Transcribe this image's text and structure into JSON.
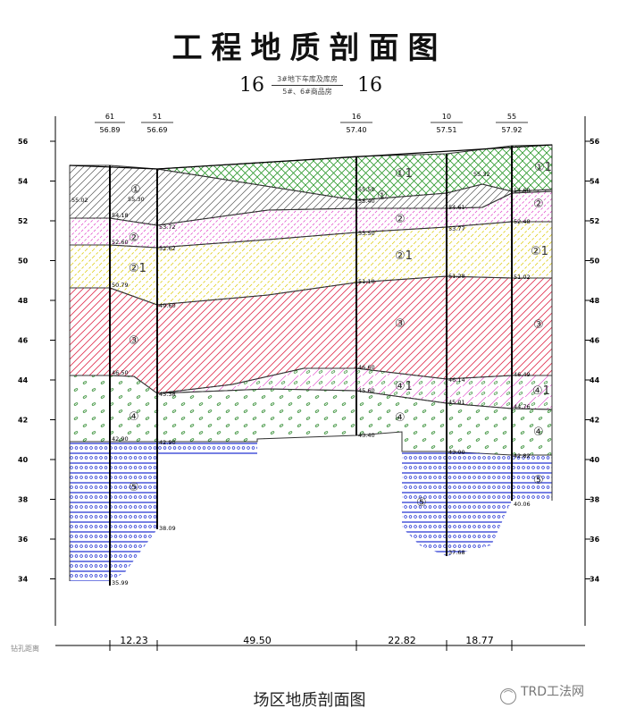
{
  "title": "工程地质剖面图",
  "section": {
    "left_id": "16",
    "right_id": "16",
    "upper_text": "3#地下车库及库房",
    "lower_text": "5#、6#商品房"
  },
  "caption": "场区地质剖面图",
  "watermark": "TRD工法网",
  "elevation_axis_labels": [
    "56",
    "54",
    "52",
    "50",
    "48",
    "46",
    "44",
    "42",
    "40",
    "38",
    "36",
    "34"
  ],
  "boreholes": [
    {
      "id": "61",
      "surface": "56.89",
      "bottom": "35.99",
      "contacts": [
        "55.02",
        "54.18",
        "52.60",
        "50.79",
        "46.50",
        "42.90"
      ]
    },
    {
      "id": "51",
      "surface": "56.69",
      "bottom": "38.09",
      "contacts": [
        "55.30",
        "53.72",
        "52.62",
        "49.60",
        "45.38",
        "42.90"
      ]
    },
    {
      "id": "16",
      "surface": "57.40",
      "bottom": "43.40",
      "contacts": [
        "55.50",
        "55.40",
        "53.50",
        "51.10",
        "46.60",
        "45.60"
      ]
    },
    {
      "id": "10",
      "surface": "57.51",
      "bottom": "37.68",
      "contacts": [
        "54.61",
        "53.77",
        "51.28",
        "46.14",
        "45.01",
        "43.00"
      ]
    },
    {
      "id": "55",
      "surface": "57.92",
      "bottom": "40.06",
      "contacts": [
        "55.32",
        "54.60",
        "52.48",
        "51.02",
        "46.49",
        "44.76",
        "42.82"
      ]
    }
  ],
  "layer_labels": [
    "①1",
    "①",
    "②",
    "②1",
    "③",
    "④1",
    "④",
    "⑤"
  ],
  "distance_row_label": "钻孔距离",
  "distances": [
    "12.23",
    "49.50",
    "22.82",
    "18.77"
  ],
  "colors": {
    "fill_layer_1": "#2e9a2e",
    "layer_1_hatch": "#555555",
    "layer_2_hatch": "#e040c8",
    "layer_2_1_hatch": "#e0d020",
    "layer_3_hatch": "#e03050",
    "layer_4_1_hatch": "#e040c8",
    "layer_4_gravel": "#2e8a2e",
    "layer_5_pattern": "#1a2ad0"
  }
}
